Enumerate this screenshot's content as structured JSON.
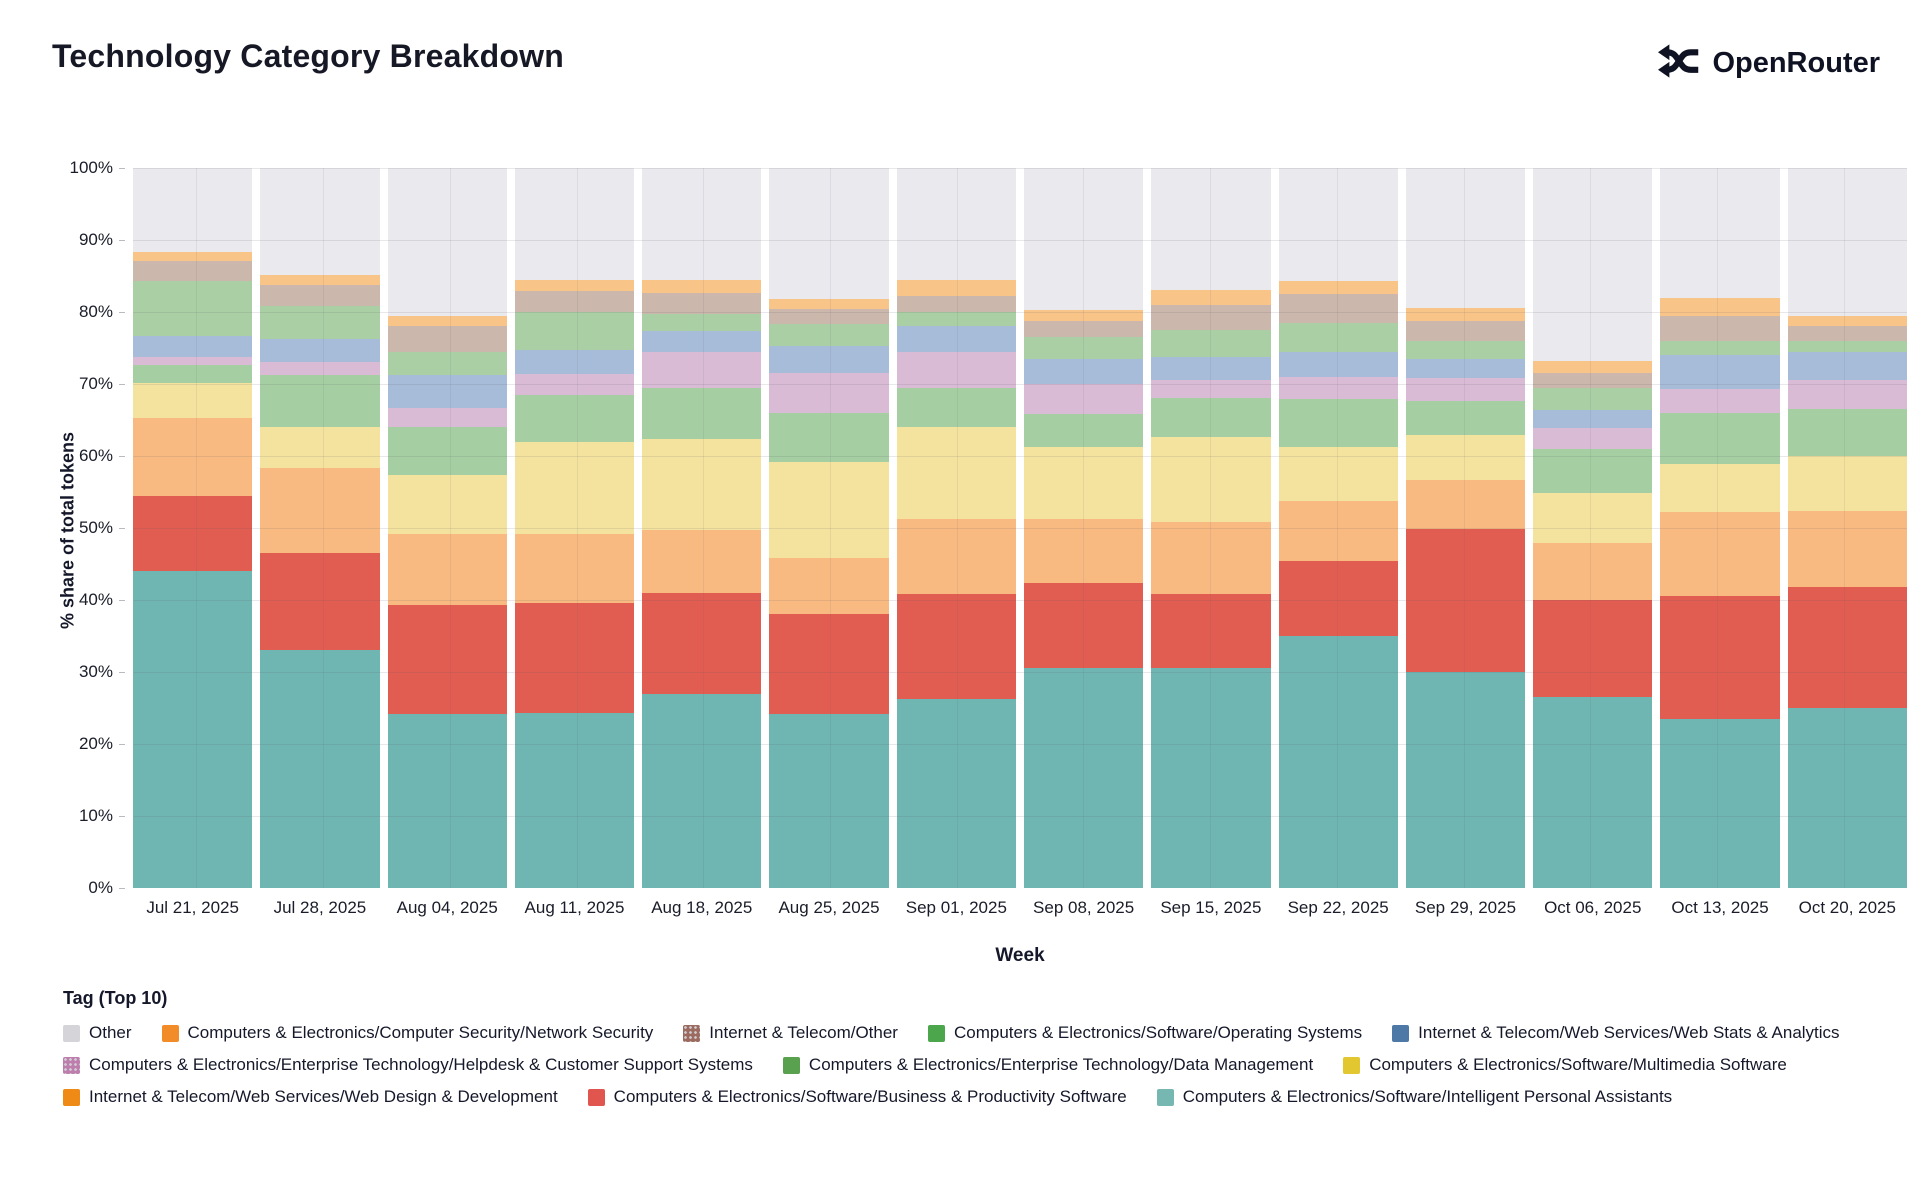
{
  "header": {
    "title": "Technology Category Breakdown",
    "brand": "OpenRouter"
  },
  "axes": {
    "y_title": "% share of total tokens",
    "x_title": "Week",
    "y_ticks": [
      "0%",
      "10%",
      "20%",
      "30%",
      "40%",
      "50%",
      "60%",
      "70%",
      "80%",
      "90%",
      "100%"
    ]
  },
  "legend": {
    "title": "Tag (Top 10)"
  },
  "chart_data": {
    "type": "bar",
    "stacked": true,
    "title": "Technology Category Breakdown",
    "xlabel": "Week",
    "ylabel": "% share of total tokens",
    "ylim": [
      0,
      100
    ],
    "grid": true,
    "legend_position": "bottom",
    "categories": [
      "Jul 21, 2025",
      "Jul 28, 2025",
      "Aug 04, 2025",
      "Aug 11, 2025",
      "Aug 18, 2025",
      "Aug 25, 2025",
      "Sep 01, 2025",
      "Sep 08, 2025",
      "Sep 15, 2025",
      "Sep 22, 2025",
      "Sep 29, 2025",
      "Oct 06, 2025",
      "Oct 13, 2025",
      "Oct 20, 2025"
    ],
    "series": [
      {
        "name": "Computers & Electronics/Software/Intelligent Personal Assistants",
        "fill": "#6fb5b1",
        "legend_color": "#76b7b2",
        "pattern": false,
        "values": [
          44.0,
          33.0,
          24.2,
          24.3,
          27.0,
          24.2,
          26.3,
          30.5,
          30.5,
          35.0,
          30.0,
          26.5,
          23.5,
          25.0
        ]
      },
      {
        "name": "Computers & Electronics/Software/Business & Productivity Software",
        "fill": "#e15d52",
        "legend_color": "#e0554d",
        "pattern": false,
        "values": [
          10.5,
          13.5,
          15.1,
          15.3,
          14.0,
          13.8,
          14.5,
          11.8,
          10.3,
          10.4,
          19.9,
          13.5,
          17.1,
          16.8
        ]
      },
      {
        "name": "Internet & Telecom/Web Services/Web Design & Development",
        "fill": "#f8ba80",
        "legend_color": "#ef8a17",
        "pattern": false,
        "values": [
          10.8,
          11.8,
          9.9,
          9.6,
          8.7,
          7.8,
          10.4,
          9.0,
          10.0,
          8.4,
          6.8,
          7.9,
          11.6,
          10.6
        ]
      },
      {
        "name": "Computers & Electronics/Software/Multimedia Software",
        "fill": "#f4e39e",
        "legend_color": "#e2c730",
        "pattern": false,
        "values": [
          4.9,
          5.7,
          8.1,
          12.8,
          12.6,
          13.4,
          12.8,
          9.9,
          11.8,
          7.5,
          6.2,
          7.0,
          6.7,
          7.6
        ]
      },
      {
        "name": "Computers & Electronics/Enterprise Technology/Data Management",
        "fill": "#a5cfa2",
        "legend_color": "#59a14f",
        "pattern": false,
        "values": [
          2.5,
          7.3,
          6.7,
          6.5,
          7.2,
          6.8,
          5.5,
          4.6,
          5.4,
          6.6,
          4.8,
          6.1,
          7.1,
          6.5
        ]
      },
      {
        "name": "Computers & Electronics/Enterprise Technology/Helpdesk & Customer Support Systems",
        "fill": "#d9bbd5",
        "legend_color": "#bd7ead",
        "pattern": true,
        "values": [
          1.1,
          1.7,
          2.7,
          2.9,
          4.9,
          5.5,
          4.9,
          4.2,
          2.5,
          3.1,
          3.1,
          2.9,
          3.3,
          4.0
        ]
      },
      {
        "name": "Internet & Telecom/Web Services/Web Stats & Analytics",
        "fill": "#a7bcd8",
        "legend_color": "#4e79a7",
        "pattern": false,
        "values": [
          2.9,
          3.3,
          4.5,
          3.3,
          3.0,
          3.8,
          3.7,
          3.5,
          3.3,
          3.5,
          2.7,
          2.5,
          4.7,
          4.0
        ]
      },
      {
        "name": "Computers & Electronics/Software/Operating Systems",
        "fill": "#abcfa5",
        "legend_color": "#4ca64c",
        "pattern": false,
        "values": [
          7.6,
          4.5,
          3.3,
          5.3,
          2.4,
          3.1,
          1.9,
          3.0,
          3.7,
          4.0,
          2.5,
          3.0,
          2.0,
          1.5
        ]
      },
      {
        "name": "Internet & Telecom/Other",
        "fill": "#cbb7ab",
        "legend_color": "#9c6a5e",
        "pattern": true,
        "values": [
          2.8,
          3.0,
          3.5,
          2.9,
          2.8,
          2.0,
          2.3,
          2.3,
          3.5,
          4.0,
          2.7,
          2.2,
          3.5,
          2.0
        ]
      },
      {
        "name": "Computers & Electronics/Computer Security/Network Security",
        "fill": "#f9c488",
        "legend_color": "#f28c28",
        "pattern": false,
        "values": [
          1.2,
          1.4,
          1.4,
          1.5,
          1.9,
          1.4,
          2.1,
          1.5,
          2.0,
          1.8,
          1.8,
          1.6,
          2.5,
          1.5
        ]
      },
      {
        "name": "Other",
        "fill": "#e9e9ee",
        "legend_color": "#d4d4d9",
        "pattern": false,
        "values": [
          11.7,
          14.8,
          20.6,
          15.6,
          15.5,
          18.2,
          15.6,
          19.7,
          17.0,
          15.7,
          19.5,
          26.8,
          18.0,
          20.5
        ]
      }
    ],
    "legend_order": [
      "Other",
      "Computers & Electronics/Computer Security/Network Security",
      "Internet & Telecom/Other",
      "Computers & Electronics/Software/Operating Systems",
      "Internet & Telecom/Web Services/Web Stats & Analytics",
      "Computers & Electronics/Enterprise Technology/Helpdesk & Customer Support Systems",
      "Computers & Electronics/Enterprise Technology/Data Management",
      "Computers & Electronics/Software/Multimedia Software",
      "Internet & Telecom/Web Services/Web Design & Development",
      "Computers & Electronics/Software/Business & Productivity Software",
      "Computers & Electronics/Software/Intelligent Personal Assistants"
    ]
  }
}
